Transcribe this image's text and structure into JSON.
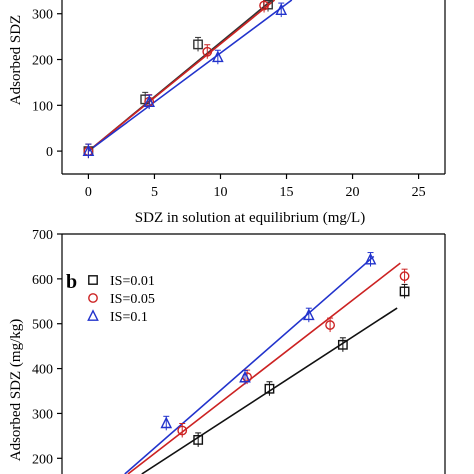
{
  "chart_data": [
    {
      "panel": "a",
      "type": "scatter",
      "title": "",
      "xlabel": "SDZ in solution at equilibrium (mg/L)",
      "ylabel": "Adsorbed SDZ",
      "xlim": [
        -2,
        27
      ],
      "ylim": [
        -50,
        330
      ],
      "xticks": [
        "0",
        "5",
        "10",
        "15",
        "20",
        "25"
      ],
      "yticks": [
        "0",
        "100",
        "200",
        "300"
      ],
      "grid": false,
      "series": [
        {
          "color": "#333333",
          "marker": "square",
          "points": [
            [
              0,
              0
            ],
            [
              4.3,
              113
            ],
            [
              8.3,
              233
            ],
            [
              13.6,
              320
            ]
          ],
          "fit": [
            [
              0,
              0
            ],
            [
              13.9,
              330
            ]
          ]
        },
        {
          "color": "#cc2222",
          "marker": "circle",
          "points": [
            [
              0,
              0
            ],
            [
              4.6,
              108
            ],
            [
              9.0,
              217
            ],
            [
              13.3,
              318
            ]
          ],
          "fit": [
            [
              0,
              0
            ],
            [
              14.1,
              330
            ]
          ]
        },
        {
          "color": "#2233cc",
          "marker": "triangle",
          "points": [
            [
              0,
              0
            ],
            [
              4.6,
              107
            ],
            [
              9.8,
              205
            ],
            [
              14.6,
              308
            ]
          ],
          "fit": [
            [
              0,
              0
            ],
            [
              15.4,
              330
            ]
          ]
        }
      ]
    },
    {
      "panel": "b",
      "panel_label": "b",
      "type": "scatter",
      "title": "",
      "xlabel": "",
      "ylabel": "Adsorbed SDZ (mg/kg)",
      "xlim": [
        0,
        36
      ],
      "ylim": [
        165,
        700
      ],
      "yticks": [
        "200",
        "300",
        "400",
        "500",
        "600",
        "700"
      ],
      "grid": false,
      "legend_position": "top-left",
      "series": [
        {
          "name": "IS=0.01",
          "color": "#111111",
          "marker": "square",
          "points": [
            [
              12.8,
              241
            ],
            [
              19.5,
              355
            ],
            [
              26.4,
              453
            ],
            [
              32.2,
              572
            ]
          ],
          "fit": [
            [
              7.5,
              165
            ],
            [
              31.5,
              535
            ]
          ]
        },
        {
          "name": "IS=0.05",
          "color": "#cc2222",
          "marker": "circle",
          "points": [
            [
              11.3,
              262
            ],
            [
              17.4,
              381
            ],
            [
              25.2,
              497
            ],
            [
              32.2,
              606
            ]
          ],
          "fit": [
            [
              6.2,
              165
            ],
            [
              31.8,
              635
            ]
          ]
        },
        {
          "name": "IS=0.1",
          "color": "#2233cc",
          "marker": "triangle",
          "points": [
            [
              9.8,
              278
            ],
            [
              17.2,
              380
            ],
            [
              23.2,
              519
            ],
            [
              29.0,
              643
            ]
          ],
          "fit": [
            [
              5.9,
              165
            ],
            [
              29.3,
              650
            ]
          ]
        }
      ]
    }
  ]
}
